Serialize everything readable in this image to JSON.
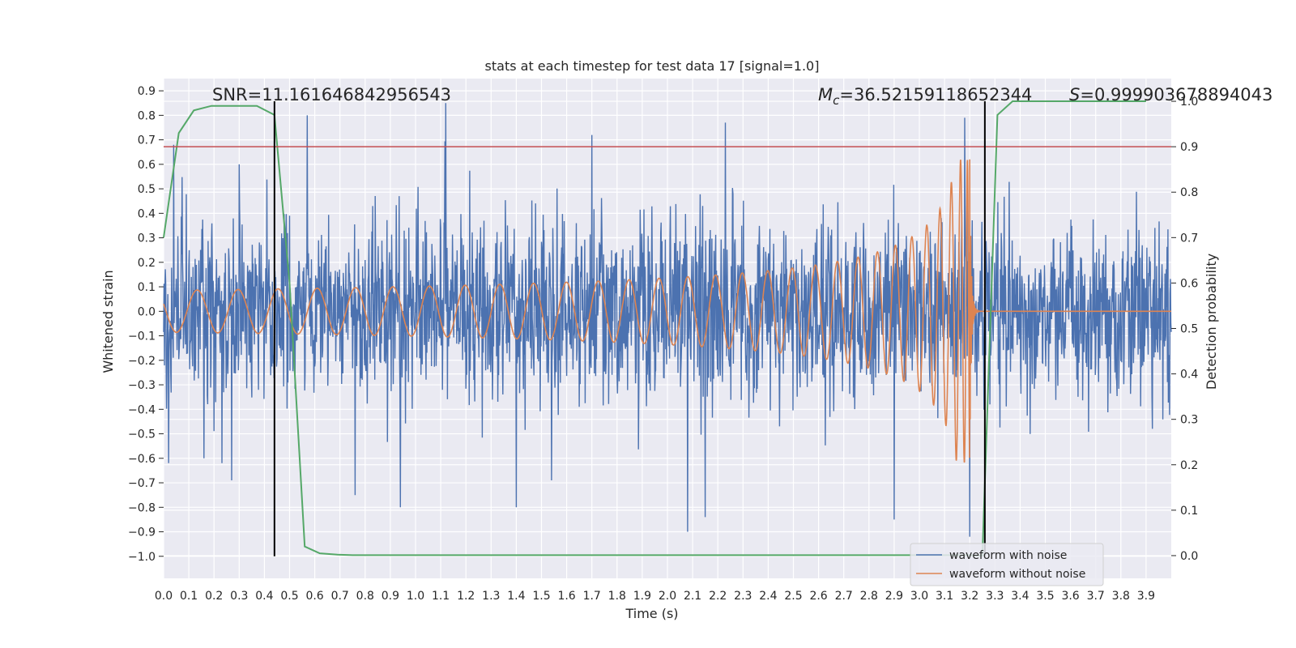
{
  "chart_data": {
    "type": "line",
    "title": "stats at each timestep for test data 17 [signal=1.0]",
    "xlabel": "Time (s)",
    "ylabel": "Whitened strain",
    "y2label": "Detection probability",
    "xlim": [
      0.0,
      4.0
    ],
    "ylim": [
      -1.09,
      0.95
    ],
    "y2lim": [
      -0.05,
      1.05
    ],
    "x_ticks": [
      "0.0",
      "0.1",
      "0.2",
      "0.3",
      "0.4",
      "0.5",
      "0.6",
      "0.7",
      "0.8",
      "0.9",
      "1.0",
      "1.1",
      "1.2",
      "1.3",
      "1.4",
      "1.5",
      "1.6",
      "1.7",
      "1.8",
      "1.9",
      "2.0",
      "2.1",
      "2.2",
      "2.3",
      "2.4",
      "2.5",
      "2.6",
      "2.7",
      "2.8",
      "2.9",
      "3.0",
      "3.1",
      "3.2",
      "3.3",
      "3.4",
      "3.5",
      "3.6",
      "3.7",
      "3.8",
      "3.9"
    ],
    "y_ticks": [
      "0.9",
      "0.8",
      "0.7",
      "0.6",
      "0.5",
      "0.4",
      "0.3",
      "0.2",
      "0.1",
      "0.0",
      "−0.1",
      "−0.2",
      "−0.3",
      "−0.4",
      "−0.5",
      "−0.6",
      "−0.7",
      "−0.8",
      "−0.9",
      "−1.0"
    ],
    "y_tick_values": [
      0.9,
      0.8,
      0.7,
      0.6,
      0.5,
      0.4,
      0.3,
      0.2,
      0.1,
      0.0,
      -0.1,
      -0.2,
      -0.3,
      -0.4,
      -0.5,
      -0.6,
      -0.7,
      -0.8,
      -0.9,
      -1.0
    ],
    "y2_ticks": [
      "1.0",
      "0.9",
      "0.8",
      "0.7",
      "0.6",
      "0.5",
      "0.4",
      "0.3",
      "0.2",
      "0.1",
      "0.0"
    ],
    "y2_tick_values": [
      1.0,
      0.9,
      0.8,
      0.7,
      0.6,
      0.5,
      0.4,
      0.3,
      0.2,
      0.1,
      0.0
    ],
    "grid": true,
    "legend_placement": "lower-right",
    "annotations": {
      "snr": "SNR=11.161646842956543",
      "mc_symbol": "M",
      "mc_sub": "c",
      "mc_value": "=36.52159118652344",
      "s_symbol": "S",
      "s_value": "=0.999903678894043"
    },
    "threshold_y2": 0.9,
    "event_lines_x": [
      0.44,
      3.26
    ],
    "series": [
      {
        "name": "waveform with noise",
        "color": "#4c72b0",
        "kind": "noise",
        "x_range": [
          0.0,
          4.0
        ],
        "typical_range": [
          -0.45,
          0.45
        ],
        "peaks": [
          {
            "x": 0.02,
            "y": -0.62
          },
          {
            "x": 0.04,
            "y": 0.68
          },
          {
            "x": 0.16,
            "y": -0.6
          },
          {
            "x": 0.27,
            "y": -0.69
          },
          {
            "x": 0.3,
            "y": 0.6
          },
          {
            "x": 0.57,
            "y": 0.8
          },
          {
            "x": 0.76,
            "y": -0.75
          },
          {
            "x": 0.94,
            "y": -0.8
          },
          {
            "x": 1.12,
            "y": 0.85
          },
          {
            "x": 1.4,
            "y": -0.8
          },
          {
            "x": 1.54,
            "y": -0.69
          },
          {
            "x": 1.7,
            "y": 0.72
          },
          {
            "x": 2.08,
            "y": -0.9
          },
          {
            "x": 2.15,
            "y": -0.84
          },
          {
            "x": 2.23,
            "y": 0.77
          },
          {
            "x": 2.9,
            "y": -0.85
          },
          {
            "x": 3.18,
            "y": 0.79
          },
          {
            "x": 3.2,
            "y": -0.92
          }
        ]
      },
      {
        "name": "waveform without noise",
        "color": "#dd8452",
        "kind": "chirp",
        "merger_x": 3.2,
        "peak_amplitude": 0.62
      },
      {
        "name": "detection probability",
        "color": "#55a868",
        "axis": "right",
        "x": [
          0.0,
          0.06,
          0.12,
          0.19,
          0.25,
          0.31,
          0.37,
          0.44,
          0.5,
          0.56,
          0.62,
          0.69,
          0.75,
          3.19,
          3.25,
          3.31,
          3.37,
          3.44,
          3.9
        ],
        "y": [
          0.7,
          0.93,
          0.98,
          0.99,
          0.99,
          0.99,
          0.99,
          0.97,
          0.6,
          0.02,
          0.005,
          0.002,
          0.001,
          0.001,
          0.0,
          0.97,
          1.0,
          1.0,
          1.0
        ]
      }
    ]
  }
}
